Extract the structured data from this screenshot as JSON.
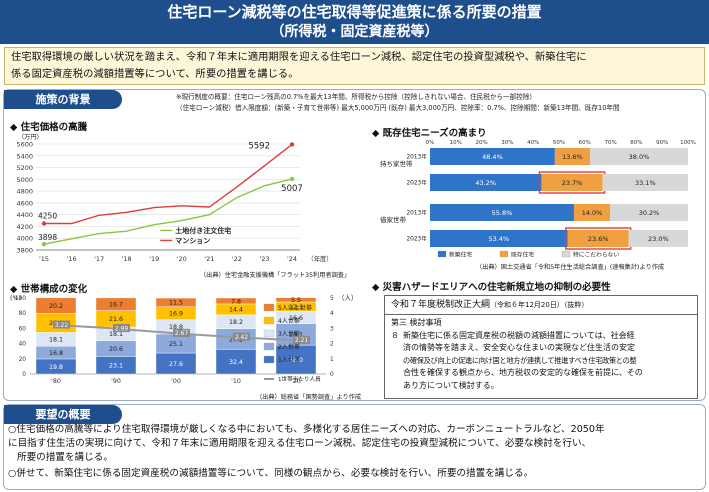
{
  "header": {
    "title1": "住宅ローン減税等の住宅取得等促進策に係る所要の措置",
    "title2": "（所得税・固定資産税等）"
  },
  "intro": {
    "line1": "住宅取得環境の厳しい状況を踏まえ、令和７年末に適用期限を迎える住宅ローン減税、認定住宅の投資型減税や、新築住宅に",
    "line2": "係る固定資産税の減額措置等について、所要の措置を講じる。"
  },
  "background": {
    "badge": "施策の背景",
    "note1": "※現行制度の概要：住宅ローン残高の0.7%を最大13年間、所得税から控除（控除しきれない場合、住民税から一部控除）",
    "note2": "（住宅ローン減税）借入限度額：(新築・子育て世帯等) 最大5,000万円 (既存) 最大3,000万円、控除率：0.7%、控除期間：新築13年間、既存10年間"
  },
  "price_chart": {
    "section": "住宅価格の高騰",
    "unit": "（万円）",
    "xaxis_unit": "（年度）",
    "source": "（出典）住宅金融支援機構「フラット35利用者調査」",
    "chart_data": {
      "type": "line",
      "categories": [
        "'15",
        "'16",
        "'17",
        "'18",
        "'19",
        "'20",
        "'21",
        "'22",
        "'23",
        "'24"
      ],
      "series": [
        {
          "name": "マンション",
          "color": "#e03c3c",
          "values": [
            4250,
            4250,
            4390,
            4440,
            4520,
            4550,
            4530,
            4870,
            5230,
            5592
          ]
        },
        {
          "name": "土地付き注文住宅",
          "color": "#8cc63e",
          "values": [
            3898,
            3990,
            4080,
            4120,
            4230,
            4300,
            4400,
            4690,
            4890,
            5007
          ]
        }
      ],
      "ylim": [
        3800,
        5600
      ],
      "yticks": [
        3800,
        4000,
        4200,
        4400,
        4600,
        4800,
        5000,
        5200,
        5400,
        5600
      ],
      "xticks": [
        "'15",
        "'16",
        "'17",
        "'18",
        "'19",
        "'20",
        "'21",
        "'22",
        "'23",
        "'24"
      ],
      "labels": {
        "start_manshon": "4250",
        "start_house": "3898",
        "end_manshon": "5592",
        "end_house": "5007"
      }
    }
  },
  "needs_chart": {
    "section": "既存住宅ニーズの高まり",
    "source": "（出典）国土交通省「令和5年住生活総合調査」(速報集計)より作成",
    "group1": "持ち家世帯",
    "group2": "借家世帯",
    "chart_data": {
      "type": "bar",
      "stacked": true,
      "orientation": "horizontal",
      "rows": [
        {
          "group": "持ち家世帯",
          "year": "2013年",
          "values": [
            48.4,
            13.6,
            38.0
          ]
        },
        {
          "group": "持ち家世帯",
          "year": "2023年",
          "values": [
            43.2,
            23.7,
            33.1
          ]
        },
        {
          "group": "借家世帯",
          "year": "2013年",
          "values": [
            55.8,
            14.0,
            30.2
          ]
        },
        {
          "group": "借家世帯",
          "year": "2023年",
          "values": [
            53.4,
            23.6,
            23.0
          ]
        }
      ],
      "series": [
        {
          "name": "新築住宅",
          "color": "#2e75c9"
        },
        {
          "name": "既存住宅",
          "color": "#f0a040"
        },
        {
          "name": "特にこだわらない",
          "color": "#d8d8d8"
        }
      ],
      "xticks": [
        "0%",
        "10%",
        "20%",
        "30%",
        "40%",
        "50%",
        "60%",
        "70%",
        "80%",
        "90%",
        "100%"
      ]
    }
  },
  "household_chart": {
    "section": "世帯構成の変化",
    "unit_left": "(%)",
    "unit_right": "（人）",
    "source": "（出典）総務省「国勢調査」より作成",
    "chart_data": {
      "type": "bar",
      "stacked": true,
      "categories": [
        "'80",
        "'90",
        "'00",
        "'10",
        "'20"
      ],
      "series": [
        {
          "name": "1人世帯",
          "color": "#4472c4",
          "values": [
            19.8,
            23.1,
            27.6,
            32.4,
            38.0
          ]
        },
        {
          "name": "2人世帯",
          "color": "#8ea9db",
          "values": [
            16.8,
            20.6,
            25.1,
            27.2,
            28.1
          ]
        },
        {
          "name": "3人世帯",
          "color": "#dde6f4",
          "values": [
            18.1,
            18.1,
            18.8,
            18.2,
            16.6
          ]
        },
        {
          "name": "4人世帯",
          "color": "#ffc000",
          "values": [
            25.3,
            21.6,
            16.9,
            14.4,
            12.1
          ]
        },
        {
          "name": "5人以上世帯",
          "color": "#ed7d31",
          "values": [
            20.2,
            16.7,
            11.5,
            7.8,
            5.5
          ]
        }
      ],
      "line": {
        "name": "1世帯当たり人員",
        "color": "#999999",
        "values": [
          3.22,
          2.99,
          2.67,
          2.42,
          2.21
        ],
        "labels": [
          "3.22",
          "2.99",
          "2.67",
          "2.42",
          "2.21"
        ]
      },
      "yticks_left": [
        "0",
        "20",
        "40",
        "60",
        "80",
        "100"
      ],
      "yticks_right": [
        "0",
        "1",
        "2",
        "3",
        "4",
        "5"
      ]
    }
  },
  "hazard": {
    "section": "災害ハザードエリアへの住宅新規立地の抑制の必要性"
  },
  "tax_outline": {
    "head": "令和７年度税制改正大綱",
    "head_date": "（令和６年12月20日）（抜粋）",
    "sub": "第三 検討事項",
    "num": "８",
    "lines": [
      "新築住宅に係る固定資産税の税額の減額措置については、社会経",
      "済の情勢等を踏まえ、安全安心な住まいの実現など住生活の安定",
      "の確保及び向上の促進に向け国と地方が連携して推進すべき住宅政策との整",
      "合性を確保する観点から、地方税収の安定的な確保を前提に、その",
      "あり方について検討する。"
    ]
  },
  "request": {
    "badge": "要望の概要",
    "p1l1": "○住宅価格の高騰等により住宅取得環境が厳しくなる中においても、多様化する居住ニーズへの対応、カーボンニュートラルなど、2050年",
    "p1l2": "に目指す住生活の実現に向けて、令和７年末に適用期限を迎える住宅ローン減税、認定住宅の投資型減税について、必要な検討を行い、",
    "p1l3": "所要の措置を講じる。",
    "p2": "○併せて、新築住宅に係る固定資産税の減額措置等について、同様の観点から、必要な検討を行い、所要の措置を講じる。"
  }
}
